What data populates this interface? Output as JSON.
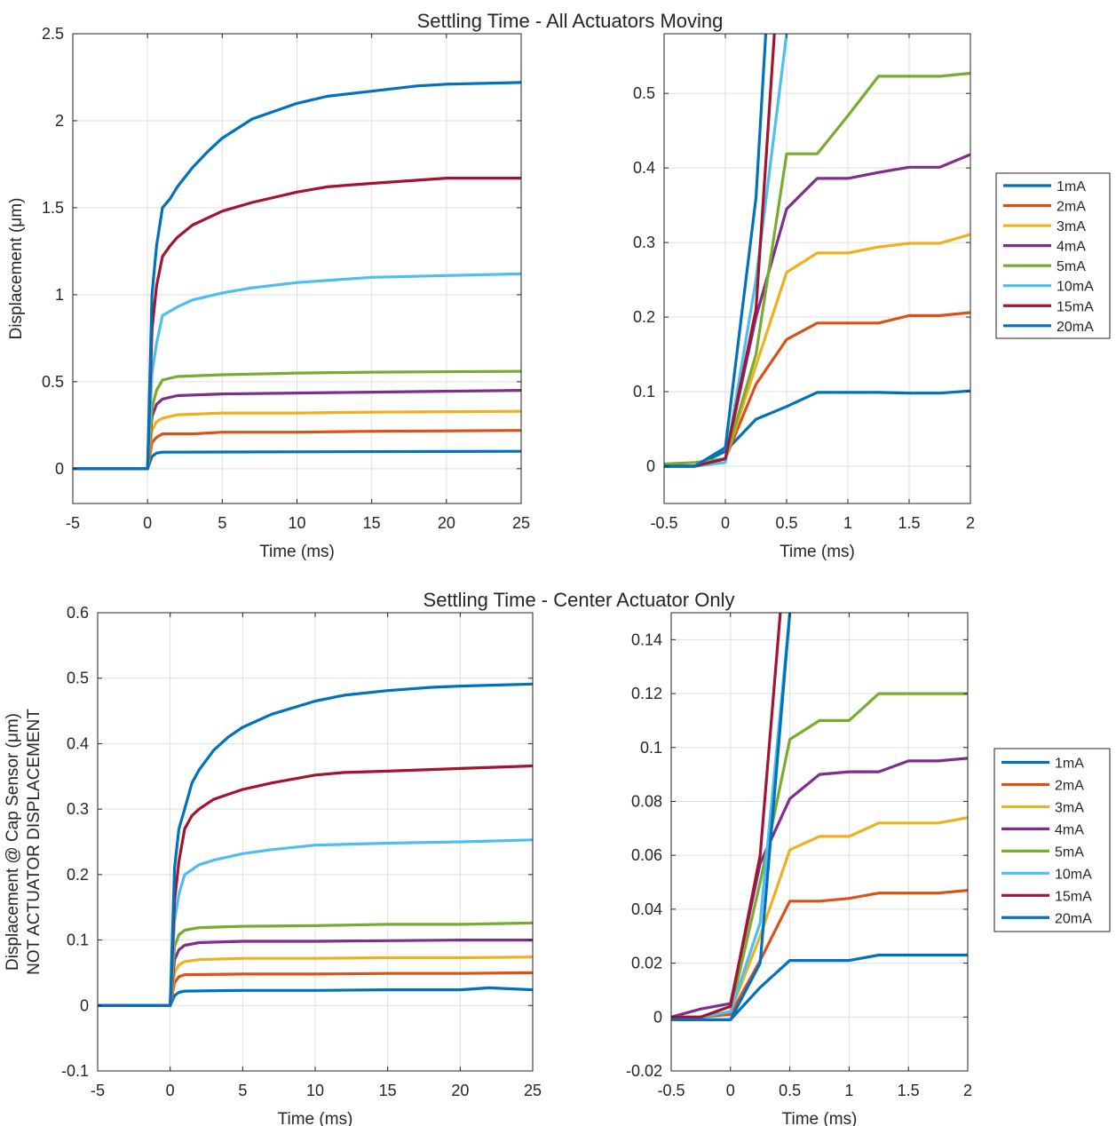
{
  "figures": [
    {
      "title": "Settling Time - All Actuators Moving"
    },
    {
      "title": "Settling Time - Center Actuator Only"
    }
  ],
  "colors": {
    "1mA": "#0072BD",
    "2mA": "#D95319",
    "3mA": "#EDB120",
    "4mA": "#7E2F8E",
    "5mA": "#77AC30",
    "10mA": "#4DBEEE",
    "15mA": "#A2142F",
    "20mA": "#0072BD"
  },
  "legend_entries": [
    "1mA",
    "2mA",
    "3mA",
    "4mA",
    "5mA",
    "10mA",
    "15mA",
    "20mA"
  ],
  "chart_data": [
    {
      "type": "line",
      "title": "Settling Time - All Actuators Moving",
      "xlabel": "Time (ms)",
      "ylabel": [
        "Displacement (μm)"
      ],
      "xlim": [
        -5,
        25
      ],
      "ylim": [
        -0.2,
        2.5
      ],
      "xticks": [
        -5,
        0,
        5,
        10,
        15,
        20,
        25
      ],
      "yticks": [
        0,
        0.5,
        1,
        1.5,
        2,
        2.5
      ],
      "yticklabels": [
        "0",
        "0.5",
        "1",
        "1.5",
        "2",
        "2.5"
      ],
      "grid": true,
      "legend": "none",
      "series": [
        {
          "name": "1mA",
          "x": [
            -5,
            0,
            0.3,
            0.6,
            1,
            25
          ],
          "y": [
            0,
            0,
            0.07,
            0.09,
            0.095,
            0.1
          ]
        },
        {
          "name": "2mA",
          "x": [
            -5,
            0,
            0.3,
            0.6,
            1,
            3,
            5,
            10,
            15,
            25
          ],
          "y": [
            0,
            0,
            0.15,
            0.18,
            0.2,
            0.2,
            0.21,
            0.21,
            0.215,
            0.22
          ]
        },
        {
          "name": "3mA",
          "x": [
            -5,
            0,
            0.3,
            0.6,
            1,
            2,
            5,
            10,
            15,
            25
          ],
          "y": [
            0,
            0,
            0.22,
            0.27,
            0.29,
            0.31,
            0.32,
            0.32,
            0.325,
            0.33
          ]
        },
        {
          "name": "4mA",
          "x": [
            -5,
            0,
            0.3,
            0.6,
            1,
            2,
            5,
            10,
            15,
            25
          ],
          "y": [
            0,
            0,
            0.3,
            0.37,
            0.4,
            0.42,
            0.43,
            0.435,
            0.44,
            0.45
          ]
        },
        {
          "name": "5mA",
          "x": [
            -5,
            0,
            0.3,
            0.6,
            1,
            2,
            5,
            10,
            15,
            25
          ],
          "y": [
            0,
            0,
            0.35,
            0.45,
            0.51,
            0.53,
            0.54,
            0.55,
            0.555,
            0.56
          ]
        },
        {
          "name": "10mA",
          "x": [
            -5,
            0,
            0.3,
            0.6,
            1,
            2,
            3,
            5,
            7,
            10,
            15,
            20,
            25
          ],
          "y": [
            0,
            0,
            0.55,
            0.72,
            0.88,
            0.93,
            0.97,
            1.01,
            1.04,
            1.07,
            1.1,
            1.11,
            1.12
          ]
        },
        {
          "name": "15mA",
          "x": [
            -5,
            0,
            0.3,
            0.6,
            1,
            1.5,
            2,
            3,
            5,
            7,
            10,
            12,
            15,
            20,
            25
          ],
          "y": [
            0,
            0,
            0.8,
            1.05,
            1.22,
            1.28,
            1.33,
            1.4,
            1.48,
            1.53,
            1.59,
            1.62,
            1.64,
            1.67,
            1.67
          ]
        },
        {
          "name": "20mA",
          "x": [
            -5,
            0,
            0.3,
            0.6,
            1,
            1.5,
            2,
            3,
            4,
            5,
            7,
            10,
            12,
            15,
            18,
            20,
            25
          ],
          "y": [
            0,
            0,
            1.0,
            1.28,
            1.5,
            1.55,
            1.62,
            1.73,
            1.82,
            1.9,
            2.01,
            2.1,
            2.14,
            2.17,
            2.2,
            2.21,
            2.22
          ]
        }
      ]
    },
    {
      "type": "line",
      "title": "",
      "xlabel": "Time (ms)",
      "ylabel": [],
      "xlim": [
        -0.5,
        2
      ],
      "ylim": [
        -0.05,
        0.58
      ],
      "xticks": [
        -0.5,
        0,
        0.5,
        1,
        1.5,
        2
      ],
      "yticks": [
        0,
        0.1,
        0.2,
        0.3,
        0.4,
        0.5
      ],
      "yticklabels": [
        "0",
        "0.1",
        "0.2",
        "0.3",
        "0.4",
        "0.5"
      ],
      "grid": true,
      "legend": "right",
      "series": [
        {
          "name": "1mA",
          "x": [
            -0.5,
            -0.25,
            0,
            0.25,
            0.5,
            0.75,
            1,
            1.25,
            1.5,
            1.75,
            2
          ],
          "y": [
            0,
            0,
            0.02,
            0.063,
            0.08,
            0.099,
            0.099,
            0.099,
            0.098,
            0.098,
            0.101
          ]
        },
        {
          "name": "2mA",
          "x": [
            -0.5,
            -0.25,
            0,
            0.25,
            0.5,
            0.75,
            1,
            1.25,
            1.5,
            1.75,
            2
          ],
          "y": [
            0,
            0,
            0.01,
            0.11,
            0.17,
            0.192,
            0.192,
            0.192,
            0.202,
            0.202,
            0.206
          ]
        },
        {
          "name": "3mA",
          "x": [
            -0.5,
            -0.25,
            0,
            0.25,
            0.5,
            0.75,
            1,
            1.25,
            1.5,
            1.75,
            2
          ],
          "y": [
            0,
            0,
            0.01,
            0.135,
            0.26,
            0.286,
            0.286,
            0.294,
            0.299,
            0.299,
            0.311
          ]
        },
        {
          "name": "4mA",
          "x": [
            -0.5,
            -0.25,
            0,
            0.25,
            0.5,
            0.75,
            1,
            1.25,
            1.5,
            1.75,
            2
          ],
          "y": [
            0,
            0,
            0.01,
            0.2,
            0.345,
            0.386,
            0.386,
            0.394,
            0.401,
            0.401,
            0.418
          ]
        },
        {
          "name": "5mA",
          "x": [
            -0.5,
            -0.25,
            0,
            0.25,
            0.5,
            0.75,
            1,
            1.25,
            1.5,
            1.75,
            2
          ],
          "y": [
            0.003,
            0.005,
            0.01,
            0.15,
            0.419,
            0.419,
            0.47,
            0.523,
            0.523,
            0.523,
            0.527
          ]
        },
        {
          "name": "10mA",
          "x": [
            -0.5,
            -0.25,
            0,
            0.25,
            0.5
          ],
          "y": [
            0,
            0,
            0.005,
            0.25,
            0.58
          ]
        },
        {
          "name": "15mA",
          "x": [
            -0.5,
            -0.25,
            0,
            0.25,
            0.4
          ],
          "y": [
            0,
            0,
            0.01,
            0.21,
            0.58
          ]
        },
        {
          "name": "20mA",
          "x": [
            -0.5,
            -0.25,
            0,
            0.25,
            0.33
          ],
          "y": [
            0,
            0,
            0.025,
            0.36,
            0.58
          ]
        }
      ]
    },
    {
      "type": "line",
      "title": "Settling Time - Center Actuator Only",
      "xlabel": "Time (ms)",
      "ylabel": [
        "Displacement @ Cap Sensor (μm)",
        "NOT ACTUATOR DISPLACEMENT"
      ],
      "xlim": [
        -5,
        25
      ],
      "ylim": [
        -0.1,
        0.6
      ],
      "xticks": [
        -5,
        0,
        5,
        10,
        15,
        20,
        25
      ],
      "yticks": [
        -0.1,
        0,
        0.1,
        0.2,
        0.3,
        0.4,
        0.5,
        0.6
      ],
      "yticklabels": [
        "-0.1",
        "0",
        "0.1",
        "0.2",
        "0.3",
        "0.4",
        "0.5",
        "0.6"
      ],
      "grid": true,
      "legend": "none",
      "series": [
        {
          "name": "1mA",
          "x": [
            -5,
            0,
            0.3,
            0.6,
            1,
            5,
            10,
            15,
            20,
            22,
            25
          ],
          "y": [
            0,
            0,
            0.015,
            0.02,
            0.022,
            0.023,
            0.023,
            0.024,
            0.024,
            0.027,
            0.024
          ]
        },
        {
          "name": "2mA",
          "x": [
            -5,
            0,
            0.3,
            0.6,
            1,
            5,
            10,
            15,
            20,
            25
          ],
          "y": [
            0,
            0,
            0.035,
            0.044,
            0.047,
            0.048,
            0.048,
            0.049,
            0.049,
            0.05
          ]
        },
        {
          "name": "3mA",
          "x": [
            -5,
            0,
            0.3,
            0.6,
            1,
            2,
            5,
            10,
            15,
            20,
            25
          ],
          "y": [
            0,
            0,
            0.05,
            0.062,
            0.067,
            0.07,
            0.072,
            0.072,
            0.073,
            0.073,
            0.074
          ]
        },
        {
          "name": "4mA",
          "x": [
            -5,
            0,
            0.3,
            0.6,
            1,
            2,
            5,
            10,
            15,
            20,
            25
          ],
          "y": [
            0,
            0,
            0.07,
            0.085,
            0.092,
            0.096,
            0.098,
            0.098,
            0.099,
            0.1,
            0.1
          ]
        },
        {
          "name": "5mA",
          "x": [
            -5,
            0,
            0.3,
            0.6,
            1,
            2,
            5,
            10,
            15,
            20,
            25
          ],
          "y": [
            0,
            0,
            0.09,
            0.108,
            0.115,
            0.119,
            0.121,
            0.122,
            0.124,
            0.124,
            0.126
          ]
        },
        {
          "name": "10mA",
          "x": [
            -5,
            0,
            0.3,
            0.6,
            1,
            2,
            3,
            5,
            7,
            10,
            15,
            20,
            25
          ],
          "y": [
            0,
            0,
            0.13,
            0.17,
            0.2,
            0.215,
            0.222,
            0.232,
            0.238,
            0.245,
            0.248,
            0.25,
            0.253
          ]
        },
        {
          "name": "15mA",
          "x": [
            -5,
            0,
            0.3,
            0.6,
            1,
            1.5,
            2,
            3,
            5,
            7,
            10,
            12,
            15,
            20,
            25
          ],
          "y": [
            0,
            0,
            0.16,
            0.22,
            0.27,
            0.29,
            0.3,
            0.315,
            0.33,
            0.34,
            0.352,
            0.356,
            0.358,
            0.362,
            0.366
          ]
        },
        {
          "name": "20mA",
          "x": [
            -5,
            0,
            0.3,
            0.6,
            1,
            1.5,
            2,
            3,
            4,
            5,
            7,
            10,
            12,
            15,
            18,
            20,
            25
          ],
          "y": [
            0,
            0,
            0.21,
            0.27,
            0.3,
            0.34,
            0.36,
            0.39,
            0.41,
            0.425,
            0.445,
            0.465,
            0.474,
            0.481,
            0.486,
            0.488,
            0.491
          ]
        }
      ]
    },
    {
      "type": "line",
      "title": "",
      "xlabel": "Time (ms)",
      "ylabel": [],
      "xlim": [
        -0.5,
        2
      ],
      "ylim": [
        -0.02,
        0.15
      ],
      "xticks": [
        -0.5,
        0,
        0.5,
        1,
        1.5,
        2
      ],
      "yticks": [
        -0.02,
        0,
        0.02,
        0.04,
        0.06,
        0.08,
        0.1,
        0.12,
        0.14
      ],
      "yticklabels": [
        "-0.02",
        "0",
        "0.02",
        "0.04",
        "0.06",
        "0.08",
        "0.1",
        "0.12",
        "0.14"
      ],
      "grid": true,
      "legend": "right",
      "series": [
        {
          "name": "1mA",
          "x": [
            -0.5,
            -0.25,
            0,
            0.25,
            0.5,
            0.75,
            1,
            1.25,
            1.5,
            1.75,
            2
          ],
          "y": [
            -0.001,
            -0.001,
            -0.001,
            0.011,
            0.021,
            0.021,
            0.021,
            0.023,
            0.023,
            0.023,
            0.023
          ]
        },
        {
          "name": "2mA",
          "x": [
            -0.5,
            -0.25,
            0,
            0.25,
            0.5,
            0.75,
            1,
            1.25,
            1.5,
            1.75,
            2
          ],
          "y": [
            0,
            0,
            0.001,
            0.021,
            0.043,
            0.043,
            0.044,
            0.046,
            0.046,
            0.046,
            0.047
          ]
        },
        {
          "name": "3mA",
          "x": [
            -0.5,
            -0.25,
            0,
            0.25,
            0.5,
            0.75,
            1,
            1.25,
            1.5,
            1.75,
            2
          ],
          "y": [
            0,
            0,
            0.002,
            0.03,
            0.062,
            0.067,
            0.067,
            0.072,
            0.072,
            0.072,
            0.074
          ]
        },
        {
          "name": "4mA",
          "x": [
            -0.5,
            -0.25,
            0,
            0.25,
            0.5,
            0.75,
            1,
            1.25,
            1.5,
            1.75,
            2
          ],
          "y": [
            0,
            0.003,
            0.005,
            0.057,
            0.081,
            0.09,
            0.091,
            0.091,
            0.095,
            0.095,
            0.096
          ]
        },
        {
          "name": "5mA",
          "x": [
            -0.5,
            -0.25,
            0,
            0.25,
            0.5,
            0.75,
            1,
            1.25,
            1.5,
            1.75,
            2
          ],
          "y": [
            0,
            0,
            0.002,
            0.05,
            0.103,
            0.11,
            0.11,
            0.12,
            0.12,
            0.12,
            0.12
          ]
        },
        {
          "name": "10mA",
          "x": [
            -0.5,
            -0.25,
            0,
            0.25,
            0.5
          ],
          "y": [
            0,
            0,
            0.002,
            0.035,
            0.15
          ]
        },
        {
          "name": "15mA",
          "x": [
            -0.5,
            -0.25,
            0,
            0.25,
            0.42
          ],
          "y": [
            0,
            0,
            0.004,
            0.06,
            0.15
          ]
        },
        {
          "name": "20mA",
          "x": [
            -0.5,
            -0.25,
            0,
            0.25,
            0.5
          ],
          "y": [
            -0.001,
            -0.001,
            -0.001,
            0.02,
            0.15
          ]
        }
      ]
    }
  ]
}
